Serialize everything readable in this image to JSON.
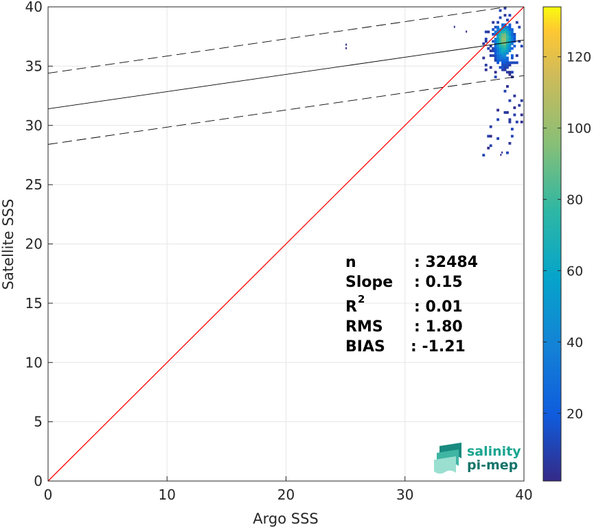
{
  "chart_data": {
    "type": "heatmap",
    "xlabel": "Argo SSS",
    "ylabel": "Satellite SSS",
    "xlim": [
      0,
      40
    ],
    "ylim": [
      0,
      40
    ],
    "xticks": [
      "0",
      "10",
      "20",
      "30",
      "40"
    ],
    "yticks": [
      "0",
      "5",
      "10",
      "15",
      "20",
      "25",
      "30",
      "35",
      "40"
    ],
    "grid": true,
    "colorbar": {
      "range": [
        1,
        134
      ],
      "ticks": [
        "20",
        "40",
        "60",
        "80",
        "100",
        "120"
      ],
      "colormap": "parula"
    },
    "reference_line": {
      "name": "1:1",
      "color": "#ff0000",
      "x": [
        0,
        40
      ],
      "y": [
        0,
        40
      ]
    },
    "regression_line": {
      "color": "#000000",
      "x": [
        0,
        40
      ],
      "y": [
        31.4,
        37.2
      ]
    },
    "envelope_lines": [
      {
        "style": "dashed",
        "x": [
          0,
          40
        ],
        "y": [
          34.4,
          40.2
        ]
      },
      {
        "style": "dashed",
        "x": [
          0,
          40
        ],
        "y": [
          28.4,
          34.2
        ]
      }
    ],
    "density_cluster": {
      "x_range": [
        36.5,
        39.8
      ],
      "y_range": [
        27.5,
        40
      ],
      "peak": {
        "x": 38.2,
        "y": 37.3,
        "count": 134
      }
    },
    "stats": [
      {
        "label": "n",
        "value": ": 32484"
      },
      {
        "label": "Slope",
        "value": ": 0.15"
      },
      {
        "label": "R",
        "sup": "2",
        "value": ": 0.01"
      },
      {
        "label": "RMS",
        "value": ": 1.80"
      },
      {
        "label": "BIAS",
        "value": ": -1.21"
      }
    ]
  },
  "logo": {
    "line1": "salinity",
    "line2": "pi-mep"
  }
}
